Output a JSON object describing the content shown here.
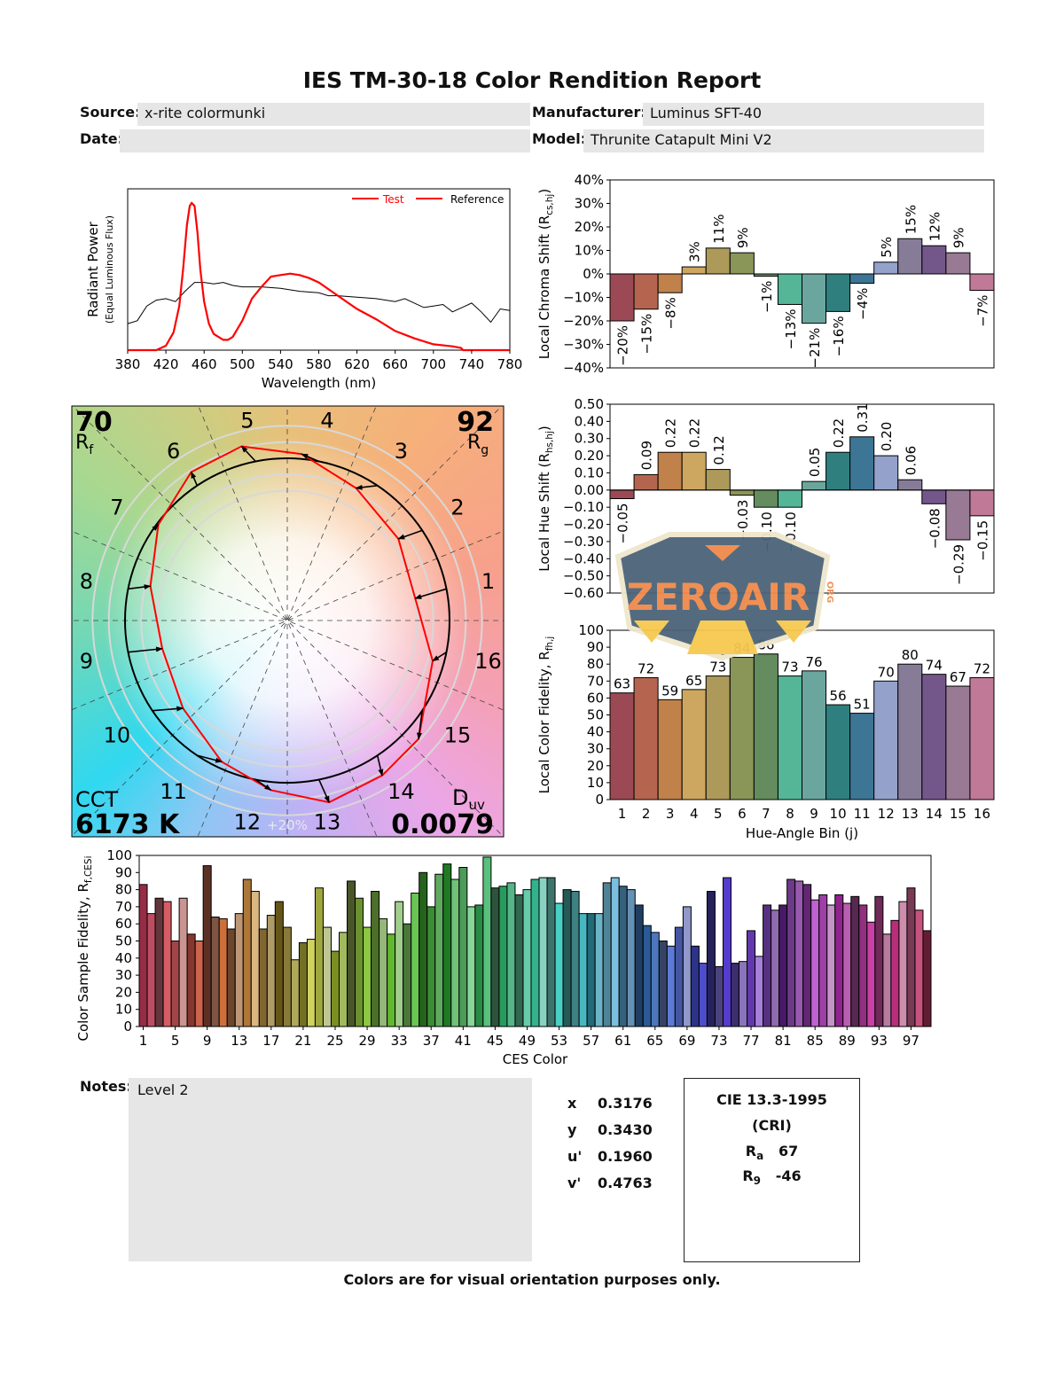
{
  "report": {
    "title": "IES TM-30-18 Color Rendition Report",
    "source_label": "Source:",
    "source_value": "x-rite colormunki",
    "manufacturer_label": "Manufacturer:",
    "manufacturer_value": "Luminus SFT-40",
    "date_label": "Date:",
    "date_value": "",
    "model_label": "Model:",
    "model_value": "Thrunite Catapult Mini V2",
    "notes_label": "Notes:",
    "notes_value": "Level 2",
    "footer": "Colors are for visual orientation purposes only."
  },
  "chromaticity": [
    {
      "label": "x",
      "value": "0.3176"
    },
    {
      "label": "y",
      "value": "0.3430"
    },
    {
      "label": "u'",
      "value": "0.1960"
    },
    {
      "label": "v'",
      "value": "0.4763"
    }
  ],
  "cri": {
    "title": "CIE 13.3-1995",
    "subtitle": "(CRI)",
    "ra_label": "R",
    "ra_sub": "a",
    "ra_value": "67",
    "r9_label": "R",
    "r9_sub": "9",
    "r9_value": "-46"
  },
  "vector_graphic": {
    "rf_value": "70",
    "rf_label": "R",
    "rf_sub": "f",
    "rg_value": "92",
    "rg_label": "R",
    "rg_sub": "g",
    "cct_label": "CCT",
    "cct_value": "6173 K",
    "duv_label": "D",
    "duv_sub": "uv",
    "duv_value": "0.0079",
    "scale_label": "+20%",
    "bin_labels": [
      "1",
      "2",
      "3",
      "4",
      "5",
      "6",
      "7",
      "8",
      "9",
      "10",
      "11",
      "12",
      "13",
      "14",
      "15",
      "16"
    ],
    "reference_color": "#000000",
    "test_color": "#ff0000"
  },
  "watermark": {
    "text": "ZEROAIR",
    "suffix": "ORG"
  },
  "chart_data": [
    {
      "type": "line",
      "id": "spectrum",
      "xlabel": "Wavelength (nm)",
      "ylabel": "Radiant Power",
      "ylabel2": "(Equal Luminous Flux)",
      "xlim": [
        380,
        780
      ],
      "xticks": [
        "380",
        "420",
        "460",
        "500",
        "540",
        "580",
        "620",
        "660",
        "700",
        "740",
        "780"
      ],
      "legend_position": "top-right",
      "series": [
        {
          "name": "Test",
          "color": "#ff0000",
          "legend_text_color": "#ff0000",
          "x": [
            380,
            410,
            420,
            428,
            434,
            438,
            442,
            445,
            447,
            450,
            453,
            456,
            460,
            465,
            470,
            480,
            485,
            490,
            500,
            510,
            520,
            530,
            540,
            550,
            560,
            570,
            580,
            600,
            620,
            640,
            660,
            680,
            700,
            720,
            729,
            731,
            780
          ],
          "y": [
            0,
            0,
            0.03,
            0.12,
            0.3,
            0.55,
            0.85,
            0.98,
            1.0,
            0.98,
            0.8,
            0.55,
            0.33,
            0.18,
            0.11,
            0.07,
            0.07,
            0.09,
            0.2,
            0.35,
            0.43,
            0.5,
            0.51,
            0.52,
            0.51,
            0.49,
            0.46,
            0.37,
            0.28,
            0.21,
            0.13,
            0.08,
            0.04,
            0.026,
            0.015,
            0,
            0
          ]
        },
        {
          "name": "Reference",
          "color": "#000000",
          "legend_line_color": "#ff0000",
          "legend_text_color": "#000000",
          "x": [
            380,
            390,
            400,
            410,
            420,
            430,
            440,
            450,
            460,
            470,
            480,
            490,
            500,
            520,
            540,
            560,
            580,
            590,
            600,
            620,
            640,
            660,
            670,
            690,
            700,
            710,
            720,
            730,
            740,
            750,
            760,
            770,
            780
          ],
          "y": [
            0.18,
            0.2,
            0.3,
            0.34,
            0.35,
            0.33,
            0.4,
            0.46,
            0.46,
            0.45,
            0.46,
            0.44,
            0.43,
            0.43,
            0.42,
            0.4,
            0.39,
            0.37,
            0.37,
            0.36,
            0.35,
            0.33,
            0.35,
            0.29,
            0.3,
            0.31,
            0.26,
            0.29,
            0.32,
            0.26,
            0.19,
            0.28,
            0.27
          ]
        }
      ]
    },
    {
      "type": "bar",
      "id": "chroma_shift",
      "ylabel": "Local Chroma Shift (R",
      "ylabel_sub": "cs,hj",
      "ylabel_end": ")",
      "ylim": [
        -40,
        40
      ],
      "yticks": [
        "40%",
        "30%",
        "20%",
        "10%",
        "0%",
        "−10%",
        "−20%",
        "−30%",
        "−40%"
      ],
      "categories": [
        "1",
        "2",
        "3",
        "4",
        "5",
        "6",
        "7",
        "8",
        "9",
        "10",
        "11",
        "12",
        "13",
        "14",
        "15",
        "16"
      ],
      "values": [
        -20,
        -15,
        -8,
        3,
        11,
        9,
        -1,
        -13,
        -21,
        -16,
        -4,
        5,
        15,
        12,
        9,
        -7
      ],
      "labels": [
        "−20%",
        "−15%",
        "−8%",
        "3%",
        "11%",
        "9%",
        "−1%",
        "−13%",
        "−21%",
        "−16%",
        "−4%",
        "5%",
        "15%",
        "12%",
        "9%",
        "−7%"
      ],
      "colors": [
        "#9b4a55",
        "#b5654f",
        "#c0814b",
        "#cda660",
        "#ad9a5a",
        "#8a9558",
        "#648c5e",
        "#55b597",
        "#6ba69e",
        "#2f7f7f",
        "#3d7595",
        "#94a2cb",
        "#877c98",
        "#73578a",
        "#987a94",
        "#c07a98"
      ]
    },
    {
      "type": "bar",
      "id": "hue_shift",
      "ylabel": "Local Hue Shift (R",
      "ylabel_sub": "hs,hj",
      "ylabel_end": ")",
      "ylim": [
        -0.6,
        0.5
      ],
      "yticks": [
        "0.50",
        "0.40",
        "0.30",
        "0.20",
        "0.10",
        "0.00",
        "−0.10",
        "−0.20",
        "−0.30",
        "−0.40",
        "−0.50",
        "−0.60"
      ],
      "categories": [
        "1",
        "2",
        "3",
        "4",
        "5",
        "6",
        "7",
        "8",
        "9",
        "10",
        "11",
        "12",
        "13",
        "14",
        "15",
        "16"
      ],
      "values": [
        -0.05,
        0.09,
        0.22,
        0.22,
        0.12,
        -0.03,
        -0.1,
        -0.1,
        0.05,
        0.22,
        0.31,
        0.2,
        0.06,
        -0.08,
        -0.29,
        -0.15
      ],
      "labels": [
        "−0.05",
        "0.09",
        "0.22",
        "0.22",
        "0.12",
        "−0.03",
        "−0.10",
        "−0.10",
        "0.05",
        "0.22",
        "0.31",
        "0.20",
        "0.06",
        "−0.08",
        "−0.29",
        "−0.15"
      ]
    },
    {
      "type": "bar",
      "id": "local_fidelity",
      "ylabel": "Local Color Fidelity, R",
      "ylabel_sub": "fh,j",
      "ylabel_end": "",
      "xlabel": "Hue-Angle Bin (j)",
      "ylim": [
        0,
        100
      ],
      "yticks": [
        "100",
        "90",
        "80",
        "70",
        "60",
        "50",
        "40",
        "30",
        "20",
        "10",
        "0"
      ],
      "categories": [
        "1",
        "2",
        "3",
        "4",
        "5",
        "6",
        "7",
        "8",
        "9",
        "10",
        "11",
        "12",
        "13",
        "14",
        "15",
        "16"
      ],
      "values": [
        63,
        72,
        59,
        65,
        73,
        84,
        86,
        73,
        76,
        56,
        51,
        70,
        80,
        74,
        67,
        72
      ]
    },
    {
      "type": "bar",
      "id": "ces_fidelity",
      "ylabel": "Color Sample Fidelity, R",
      "ylabel_sub": "f,CESi",
      "ylabel_end": "",
      "xlabel": "CES Color",
      "ylim": [
        0,
        100
      ],
      "yticks": [
        "100",
        "90",
        "80",
        "70",
        "60",
        "50",
        "40",
        "30",
        "20",
        "10",
        "0"
      ],
      "xticks": [
        "1",
        "5",
        "9",
        "13",
        "17",
        "21",
        "25",
        "29",
        "33",
        "37",
        "41",
        "45",
        "49",
        "53",
        "57",
        "61",
        "65",
        "69",
        "73",
        "77",
        "81",
        "85",
        "89",
        "93",
        "97"
      ],
      "values": [
        83,
        66,
        75,
        73,
        50,
        75,
        54,
        50,
        94,
        64,
        63,
        57,
        66,
        86,
        79,
        57,
        65,
        73,
        58,
        39,
        49,
        51,
        81,
        58,
        44,
        55,
        85,
        75,
        58,
        79,
        63,
        54,
        73,
        60,
        78,
        90,
        70,
        89,
        95,
        86,
        93,
        70,
        71,
        99,
        81,
        82,
        84,
        77,
        80,
        86,
        87,
        87,
        72,
        80,
        79,
        66,
        66,
        66,
        84,
        87,
        82,
        80,
        71,
        59,
        55,
        50,
        47,
        58,
        70,
        47,
        37,
        79,
        35,
        87,
        37,
        38,
        56,
        41,
        71,
        68,
        71,
        86,
        85,
        83,
        74,
        77,
        71,
        77,
        72,
        76,
        71,
        61,
        76,
        54,
        62,
        73,
        81,
        68,
        56
      ]
    }
  ]
}
